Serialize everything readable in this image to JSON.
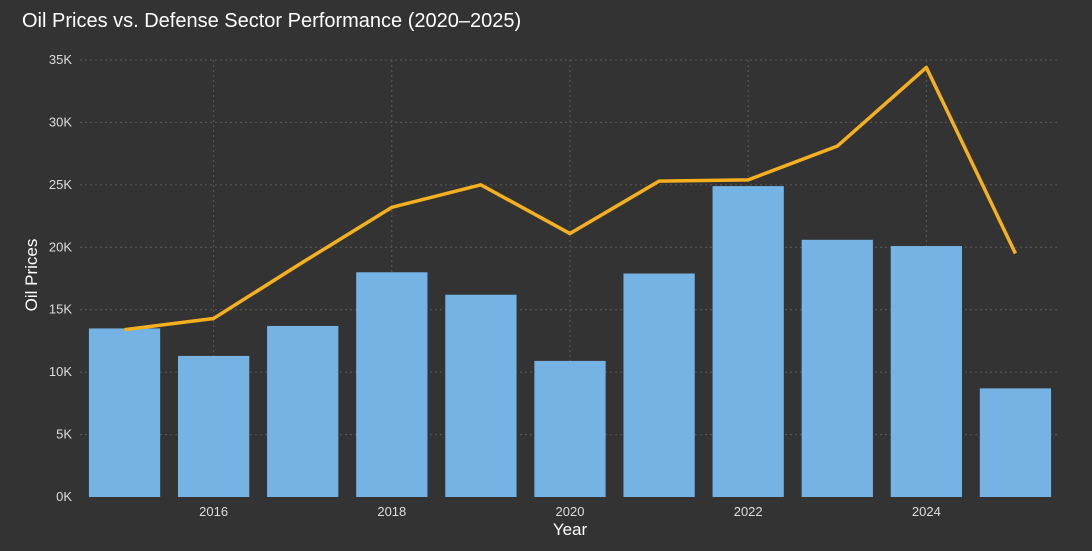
{
  "chart_data": {
    "type": "bar",
    "title": "Oil Prices vs. Defense Sector Performance (2020–2025)",
    "xlabel": "Year",
    "ylabel": "Oil Prices",
    "x": [
      2015,
      2016,
      2017,
      2018,
      2019,
      2020,
      2021,
      2022,
      2023,
      2024,
      2025
    ],
    "x_tick_labels": [
      "2016",
      "2018",
      "2020",
      "2022",
      "2024"
    ],
    "x_tick_values": [
      2016,
      2018,
      2020,
      2022,
      2024
    ],
    "y_tick_labels": [
      "0K",
      "5K",
      "10K",
      "15K",
      "20K",
      "25K",
      "30K",
      "35K"
    ],
    "y_tick_values": [
      0,
      5000,
      10000,
      15000,
      20000,
      25000,
      30000,
      35000
    ],
    "ylim": [
      0,
      35000
    ],
    "grid": true,
    "series": [
      {
        "type": "bar",
        "color": "#74b3e3",
        "values": [
          13500,
          11300,
          13700,
          18000,
          16200,
          10900,
          17900,
          24900,
          20600,
          20100,
          8700
        ]
      },
      {
        "type": "line",
        "color": "#f5b020",
        "values": [
          13400,
          14300,
          18800,
          23200,
          25000,
          21100,
          25300,
          25400,
          28100,
          34400,
          19500
        ]
      }
    ]
  }
}
